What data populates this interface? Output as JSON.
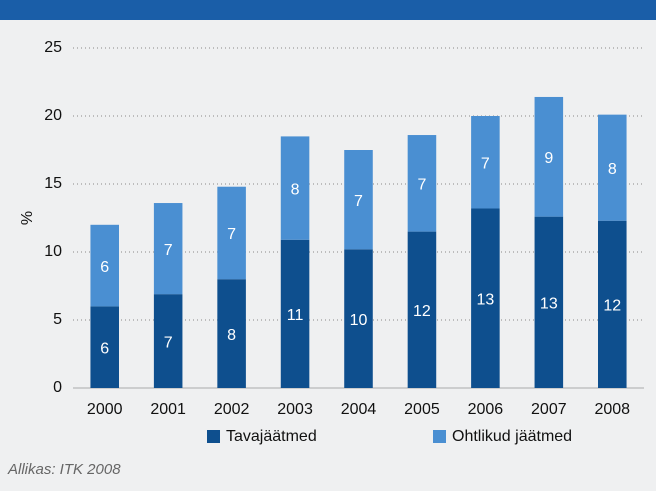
{
  "chart_data": {
    "type": "stacked_bar",
    "categories": [
      "2000",
      "2001",
      "2002",
      "2003",
      "2004",
      "2005",
      "2006",
      "2007",
      "2008"
    ],
    "series": [
      {
        "name": "Tavajäätmed",
        "color": "#0e4f8e",
        "values": [
          6.0,
          6.9,
          8.0,
          10.9,
          10.2,
          11.5,
          13.2,
          12.6,
          12.3
        ],
        "value_labels": [
          "6",
          "7",
          "8",
          "11",
          "10",
          "12",
          "13",
          "13",
          "12"
        ]
      },
      {
        "name": "Ohtlikud jäätmed",
        "color": "#4a8fd2",
        "values": [
          6.0,
          6.7,
          6.8,
          7.6,
          7.3,
          7.1,
          6.8,
          8.8,
          7.8
        ],
        "value_labels": [
          "6",
          "7",
          "7",
          "8",
          "7",
          "7",
          "7",
          "9",
          "8"
        ]
      }
    ],
    "ylabel": "%",
    "ylim": [
      0,
      25
    ],
    "yticks": [
      0,
      5,
      10,
      15,
      20,
      25
    ],
    "grid": true,
    "source": "Allikas: ITK 2008"
  }
}
